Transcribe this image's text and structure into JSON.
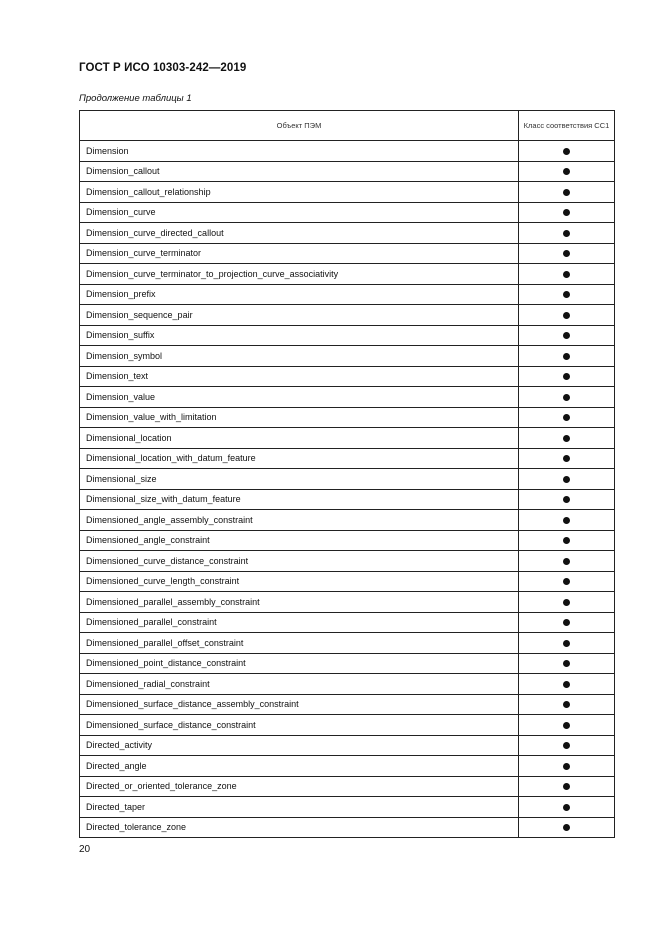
{
  "document": {
    "title": "ГОСТ Р ИСО 10303-242—2019",
    "caption": "Продолжение таблицы 1",
    "page_number": "20"
  },
  "table": {
    "headers": [
      "Объект ПЭМ",
      "Класс соответствия СС1"
    ],
    "mark_icon": "filled-circle",
    "rows": [
      "Dimension",
      "Dimension_callout",
      "Dimension_callout_relationship",
      "Dimension_curve",
      "Dimension_curve_directed_callout",
      "Dimension_curve_terminator",
      "Dimension_curve_terminator_to_projection_curve_associativity",
      "Dimension_prefix",
      "Dimension_sequence_pair",
      "Dimension_suffix",
      "Dimension_symbol",
      "Dimension_text",
      "Dimension_value",
      "Dimension_value_with_limitation",
      "Dimensional_location",
      "Dimensional_location_with_datum_feature",
      "Dimensional_size",
      "Dimensional_size_with_datum_feature",
      "Dimensioned_angle_assembly_constraint",
      "Dimensioned_angle_constraint",
      "Dimensioned_curve_distance_constraint",
      "Dimensioned_curve_length_constraint",
      "Dimensioned_parallel_assembly_constraint",
      "Dimensioned_parallel_constraint",
      "Dimensioned_parallel_offset_constraint",
      "Dimensioned_point_distance_constraint",
      "Dimensioned_radial_constraint",
      "Dimensioned_surface_distance_assembly_constraint",
      "Dimensioned_surface_distance_constraint",
      "Directed_activity",
      "Directed_angle",
      "Directed_or_oriented_tolerance_zone",
      "Directed_taper",
      "Directed_tolerance_zone"
    ]
  }
}
